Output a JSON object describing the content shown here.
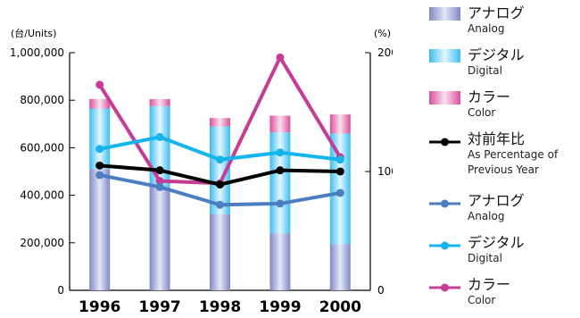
{
  "chart_data": {
    "type": "bar",
    "categories": [
      "1996",
      "1997",
      "1998",
      "1999",
      "2000"
    ],
    "y_left": {
      "unit_label": "(台/Units)",
      "ylim": [
        0,
        1000000
      ],
      "ticks": [
        "0",
        "200,000",
        "400,000",
        "600,000",
        "800,000",
        "1,000,000"
      ]
    },
    "y_right": {
      "unit_label": "(%)",
      "ylim": [
        0,
        200
      ],
      "ticks": [
        "0",
        "100",
        "200"
      ]
    },
    "stacked_series": [
      {
        "name_ja": "アナログ",
        "name_en": "Analog",
        "values": [
          510000,
          435000,
          320000,
          240000,
          195000
        ],
        "color": "#8c96cd"
      },
      {
        "name_ja": "デジタル",
        "name_en": "Digital",
        "values": [
          255000,
          340000,
          370000,
          425000,
          465000
        ],
        "color": "#56c7f0"
      },
      {
        "name_ja": "カラー",
        "name_en": "Color",
        "values": [
          40000,
          30000,
          35000,
          70000,
          80000
        ],
        "color": "#e061a5"
      }
    ],
    "line_series": [
      {
        "name_ja": "対前年比",
        "name_en": "As Percentage of",
        "name_en2": "Previous Year",
        "values": [
          105,
          101,
          89,
          101,
          100
        ],
        "color": "#000000"
      },
      {
        "name_ja": "アナログ",
        "name_en": "Analog",
        "values": [
          97,
          87,
          72,
          73,
          82
        ],
        "color": "#4a7ec0"
      },
      {
        "name_ja": "デジタル",
        "name_en": "Digital",
        "values": [
          119,
          129,
          110,
          116,
          110
        ],
        "color": "#14b4ec"
      },
      {
        "name_ja": "カラー",
        "name_en": "Color",
        "values": [
          173,
          92,
          90,
          196,
          112
        ],
        "color": "#c63c95"
      }
    ],
    "grid": false
  }
}
